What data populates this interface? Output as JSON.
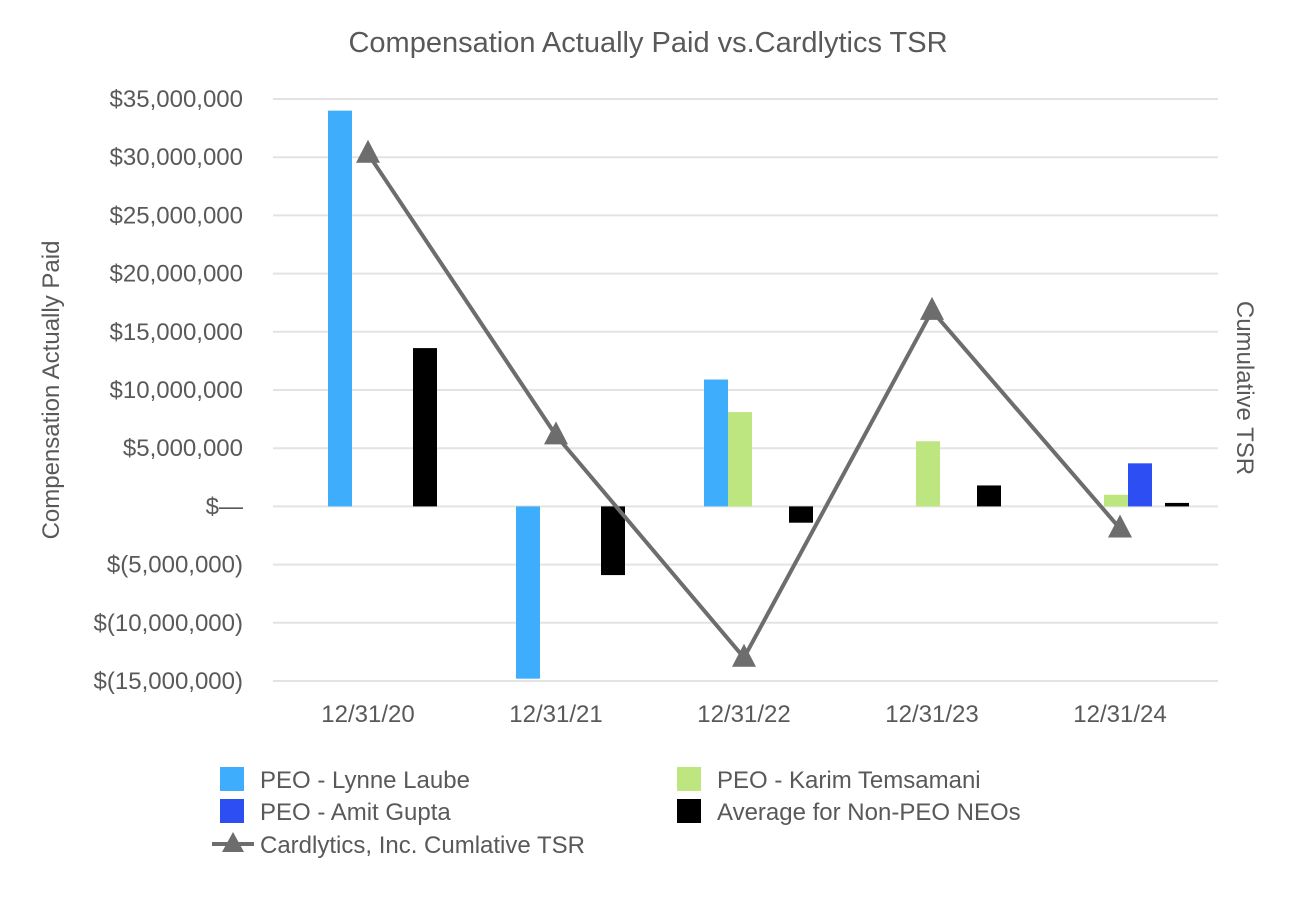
{
  "chart_data": {
    "type": "bar+line",
    "title": "Compensation Actually Paid vs.Cardlytics TSR",
    "ylabel": "Compensation Actually Paid",
    "y2label": "Cumulative TSR",
    "ylim": [
      -15000000,
      35000000
    ],
    "yticks": [
      35000000,
      30000000,
      25000000,
      20000000,
      15000000,
      10000000,
      5000000,
      0,
      -5000000,
      -10000000,
      -15000000
    ],
    "ytick_labels": [
      "$35,000,000",
      "$30,000,000",
      "$25,000,000",
      "$20,000,000",
      "$15,000,000",
      "$10,000,000",
      "$5,000,000",
      "$—",
      "$(5,000,000)",
      "$(10,000,000)",
      "$(15,000,000)"
    ],
    "categories": [
      "12/31/20",
      "12/31/21",
      "12/31/22",
      "12/31/23",
      "12/31/24"
    ],
    "series": [
      {
        "name": "PEO - Lynne Laube",
        "color": "#3eaefc",
        "values": [
          34000000,
          -14800000,
          10900000,
          null,
          null
        ]
      },
      {
        "name": "PEO - Karim Temsamani",
        "color": "#bde681",
        "values": [
          null,
          null,
          8100000,
          5600000,
          1000000
        ]
      },
      {
        "name": "PEO - Amit Gupta",
        "color": "#2d4ef2",
        "values": [
          null,
          null,
          null,
          null,
          3700000
        ]
      },
      {
        "name": "Average for Non-PEO NEOs",
        "color": "#000000",
        "values": [
          13600000,
          -5900000,
          -1400000,
          1800000,
          300000
        ]
      }
    ],
    "line": {
      "name": "Cardlytics, Inc.  Cumlative TSR",
      "color": "#6d6d6d",
      "values_on_left_scale": [
        30300000,
        6100000,
        -13000000,
        16800000,
        -1900000
      ]
    },
    "legend": [
      {
        "label": "PEO - Lynne Laube",
        "color": "#3eaefc",
        "kind": "box"
      },
      {
        "label": "PEO - Karim Temsamani",
        "color": "#bde681",
        "kind": "box"
      },
      {
        "label": "PEO - Amit Gupta",
        "color": "#2d4ef2",
        "kind": "box"
      },
      {
        "label": "Average for Non-PEO NEOs",
        "color": "#000000",
        "kind": "box"
      },
      {
        "label": "Cardlytics, Inc.  Cumlative TSR",
        "color": "#6d6d6d",
        "kind": "line-triangle"
      }
    ],
    "legend_position": "bottom",
    "grid": true
  }
}
